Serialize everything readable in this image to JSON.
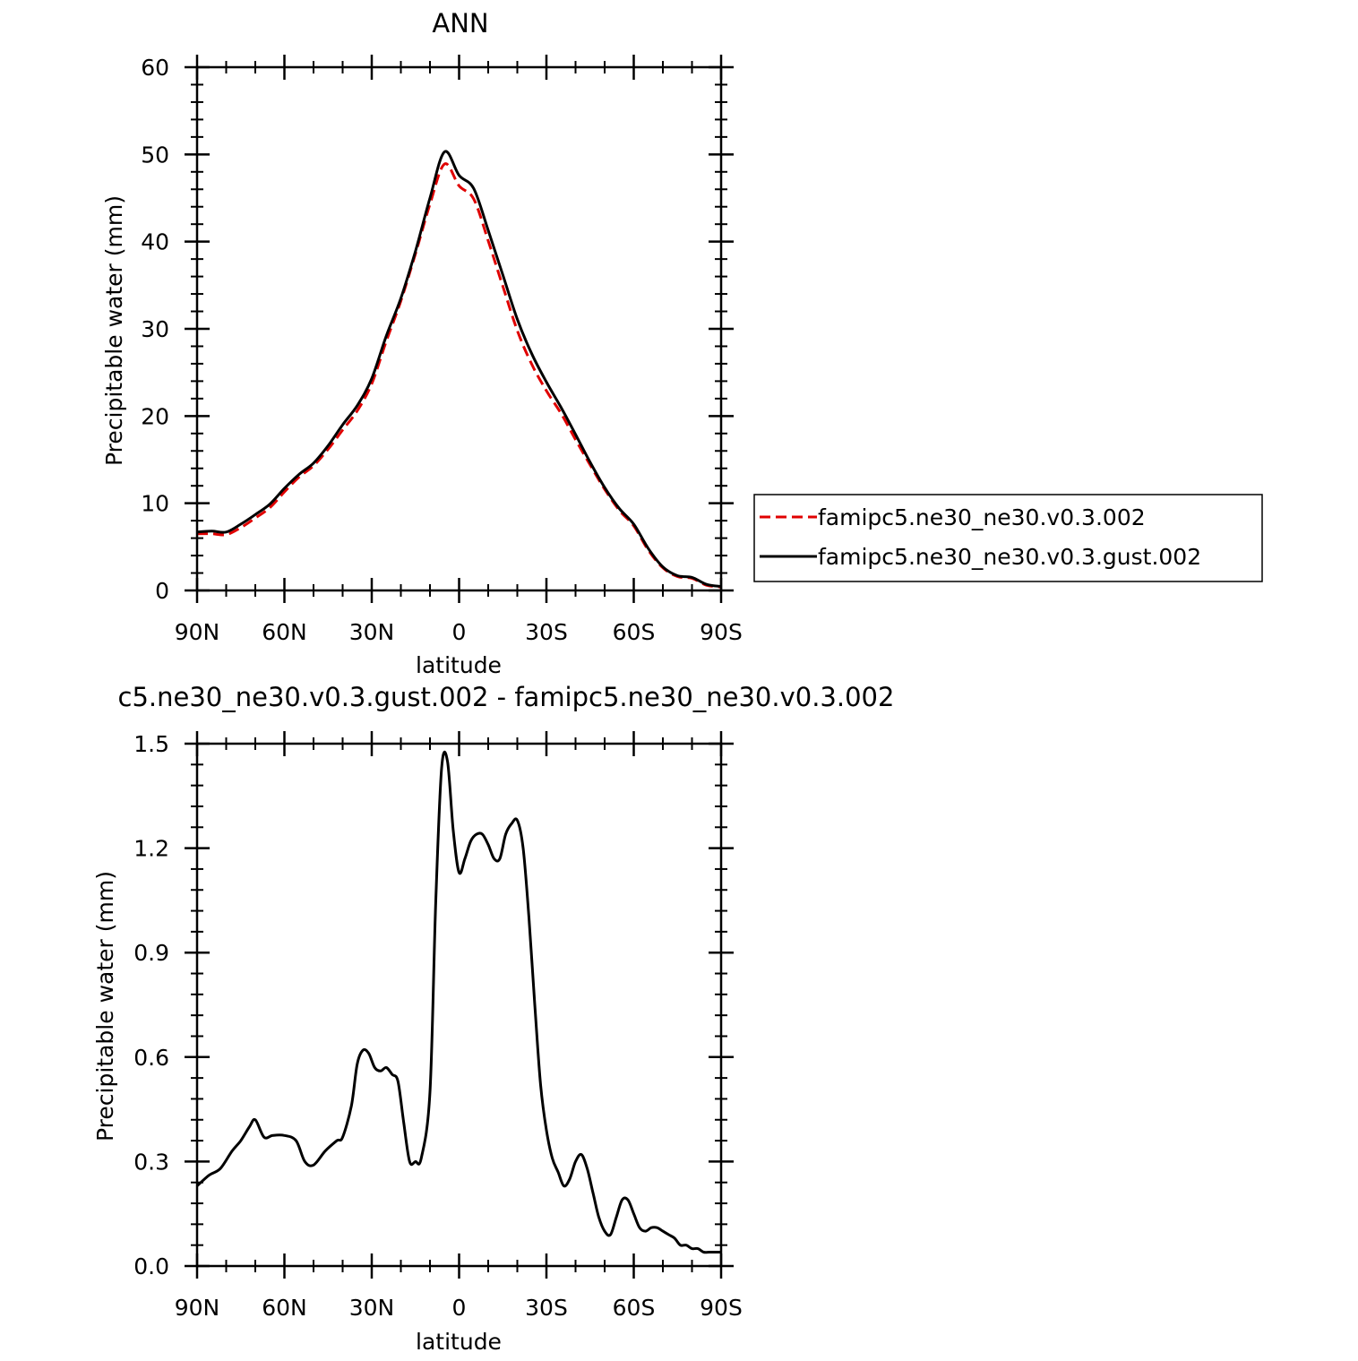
{
  "chart_data": [
    {
      "type": "line",
      "title": "ANN",
      "xlabel": "latitude",
      "ylabel": "Precipitable water (mm)",
      "xlim": [
        90,
        -90
      ],
      "ylim": [
        0,
        60
      ],
      "x_ticks": [
        90,
        60,
        30,
        0,
        -30,
        -60,
        -90
      ],
      "x_tick_labels": [
        "90N",
        "60N",
        "30N",
        "0",
        "30S",
        "60S",
        "90S"
      ],
      "y_ticks": [
        0,
        10,
        20,
        30,
        40,
        50,
        60
      ],
      "y_tick_labels": [
        "0",
        "10",
        "20",
        "30",
        "40",
        "50",
        "60"
      ],
      "legend_position": "right",
      "x": [
        90,
        85,
        80,
        75,
        70,
        65,
        60,
        55,
        50,
        45,
        40,
        35,
        30,
        25,
        20,
        15,
        10,
        5,
        0,
        -5,
        -10,
        -15,
        -20,
        -25,
        -30,
        -35,
        -40,
        -45,
        -50,
        -55,
        -60,
        -65,
        -70,
        -75,
        -80,
        -85,
        -90
      ],
      "series": [
        {
          "name": "famipc5.ne30_ne30.v0.3.002",
          "color": "#e00000",
          "style": "dashed",
          "values": [
            6.5,
            6.5,
            6.4,
            7.2,
            8.3,
            9.5,
            11.3,
            13.0,
            14.3,
            16.2,
            18.4,
            20.6,
            23.7,
            28.6,
            33.2,
            38.6,
            44.3,
            48.9,
            46.4,
            44.9,
            40.1,
            34.9,
            29.8,
            25.9,
            22.9,
            20.3,
            17.3,
            14.4,
            11.6,
            9.2,
            7.4,
            4.6,
            2.6,
            1.6,
            1.4,
            0.6,
            0.4
          ]
        },
        {
          "name": "famipc5.ne30_ne30.v0.3.gust.002",
          "color": "#000000",
          "style": "solid",
          "values": [
            6.7,
            6.8,
            6.7,
            7.6,
            8.7,
            9.9,
            11.7,
            13.3,
            14.6,
            16.6,
            19.0,
            21.2,
            24.3,
            29.2,
            33.5,
            38.9,
            45.0,
            50.3,
            47.6,
            46.1,
            41.3,
            36.2,
            31.1,
            27.1,
            23.9,
            21.0,
            17.9,
            14.7,
            11.8,
            9.4,
            7.6,
            4.8,
            2.7,
            1.7,
            1.5,
            0.7,
            0.45
          ]
        }
      ]
    },
    {
      "type": "line",
      "title": "c5.ne30_ne30.v0.3.gust.002 - famipc5.ne30_ne30.v0.3.002",
      "xlabel": "latitude",
      "ylabel": "Precipitable water (mm)",
      "xlim": [
        90,
        -90
      ],
      "ylim": [
        0,
        1.5
      ],
      "x_ticks": [
        90,
        60,
        30,
        0,
        -30,
        -60,
        -90
      ],
      "x_tick_labels": [
        "90N",
        "60N",
        "30N",
        "0",
        "30S",
        "60S",
        "90S"
      ],
      "y_ticks": [
        0,
        0.3,
        0.6,
        0.9,
        1.2,
        1.5
      ],
      "y_tick_labels": [
        "0.0",
        "0.3",
        "0.6",
        "0.9",
        "1.2",
        "1.5"
      ],
      "x": [
        90,
        86,
        82,
        78,
        75,
        72,
        70,
        67,
        64,
        60,
        56,
        53,
        50,
        46,
        42,
        40,
        37,
        35,
        33,
        31,
        29,
        27,
        25,
        23,
        21,
        19,
        17,
        15,
        13,
        10,
        8,
        6,
        4,
        2,
        0,
        -2,
        -4,
        -6,
        -8,
        -10,
        -12,
        -14,
        -16,
        -18,
        -20,
        -22,
        -24,
        -26,
        -28,
        -30,
        -32,
        -34,
        -36,
        -38,
        -40,
        -42,
        -44,
        -46,
        -48,
        -50,
        -52,
        -54,
        -56,
        -58,
        -60,
        -62,
        -64,
        -66,
        -68,
        -70,
        -72,
        -74,
        -76,
        -78,
        -80,
        -82,
        -84,
        -86,
        -88,
        -90
      ],
      "series": [
        {
          "name": "",
          "color": "#000000",
          "style": "solid",
          "values": [
            0.23,
            0.26,
            0.28,
            0.33,
            0.36,
            0.4,
            0.42,
            0.37,
            0.375,
            0.375,
            0.36,
            0.3,
            0.29,
            0.33,
            0.36,
            0.37,
            0.46,
            0.58,
            0.62,
            0.61,
            0.57,
            0.56,
            0.57,
            0.55,
            0.53,
            0.41,
            0.3,
            0.3,
            0.31,
            0.5,
            1.05,
            1.43,
            1.45,
            1.25,
            1.13,
            1.17,
            1.22,
            1.24,
            1.24,
            1.21,
            1.17,
            1.17,
            1.24,
            1.27,
            1.28,
            1.2,
            1.0,
            0.75,
            0.52,
            0.39,
            0.31,
            0.27,
            0.23,
            0.25,
            0.3,
            0.32,
            0.28,
            0.21,
            0.14,
            0.1,
            0.09,
            0.14,
            0.19,
            0.19,
            0.15,
            0.11,
            0.1,
            0.11,
            0.11,
            0.1,
            0.09,
            0.08,
            0.06,
            0.06,
            0.05,
            0.05,
            0.04,
            0.04,
            0.04,
            0.04
          ]
        }
      ]
    }
  ]
}
